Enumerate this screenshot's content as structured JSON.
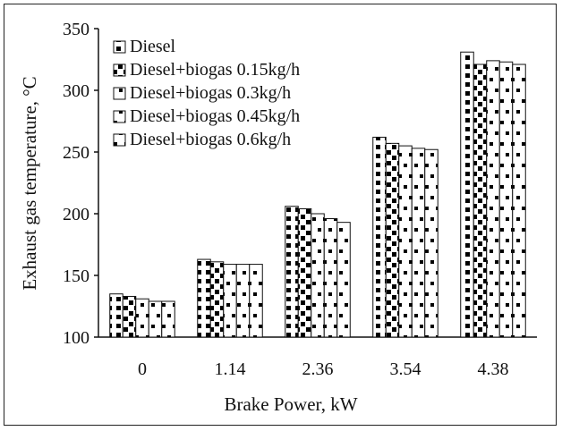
{
  "chart_data": {
    "type": "bar",
    "title": "",
    "xlabel": "Brake Power, kW",
    "ylabel": "Exhaust  gas temperature,  °C",
    "categories": [
      "0",
      "1.14",
      "2.36",
      "3.54",
      "4.38"
    ],
    "ylim": [
      100,
      350
    ],
    "yticks": [
      "100",
      "150",
      "200",
      "250",
      "300",
      "350"
    ],
    "grid": false,
    "legend_position": "top-left",
    "series": [
      {
        "name": "Diesel",
        "values": [
          135,
          163,
          206,
          262,
          331
        ],
        "pattern": "half-dots"
      },
      {
        "name": "Diesel+biogas 0.15kg/h",
        "values": [
          133,
          161,
          204,
          257,
          321
        ],
        "pattern": "checker"
      },
      {
        "name": "Diesel+biogas 0.3kg/h",
        "values": [
          131,
          159,
          200,
          255,
          324
        ],
        "pattern": "sparse-dots"
      },
      {
        "name": "Diesel+biogas 0.45kg/h",
        "values": [
          129,
          159,
          196,
          253,
          323
        ],
        "pattern": "sparse-dots"
      },
      {
        "name": "Diesel+biogas 0.6kg/h",
        "values": [
          129,
          159,
          193,
          252,
          321
        ],
        "pattern": "sparse-dots"
      }
    ]
  }
}
